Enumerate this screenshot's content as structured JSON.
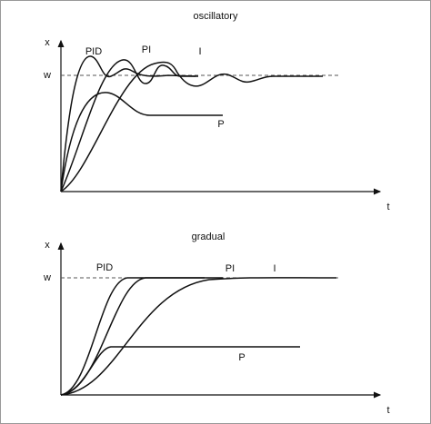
{
  "panels": [
    {
      "title": "oscillatory",
      "y_label": "x",
      "x_label": "t",
      "setpoint_label": "w",
      "curve_labels": [
        "PID",
        "PI",
        "I",
        "P"
      ]
    },
    {
      "title": "gradual",
      "y_label": "x",
      "x_label": "t",
      "setpoint_label": "w",
      "curve_labels": [
        "PID",
        "PI",
        "I",
        "P"
      ]
    }
  ]
}
